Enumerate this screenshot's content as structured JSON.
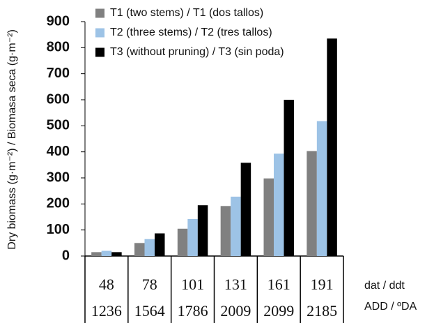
{
  "chart_data": {
    "type": "bar",
    "y_label": "Dry biomass (g·m⁻²) / Biomasa seca (g·m⁻²)",
    "categories": [
      "48",
      "78",
      "101",
      "131",
      "161",
      "191"
    ],
    "categories2": [
      "1236",
      "1564",
      "1786",
      "2009",
      "2099",
      "2185"
    ],
    "row_label": "dat / ddt",
    "row_label2": "ADD / ºDA",
    "series": [
      {
        "name": "T1 (two stems) / T1 (dos tallos)",
        "color": "#808080",
        "values": [
          15,
          50,
          105,
          192,
          298,
          403
        ]
      },
      {
        "name": "T2 (three stems) / T2 (tres tallos)",
        "color": "#9dc3e6",
        "values": [
          20,
          65,
          142,
          228,
          393,
          518
        ]
      },
      {
        "name": "T3 (without pruning) / T3 (sin poda)",
        "color": "#000000",
        "values": [
          15,
          87,
          195,
          358,
          600,
          835
        ]
      }
    ],
    "ylim": [
      0,
      900
    ],
    "yticks": [
      0,
      100,
      200,
      300,
      400,
      500,
      600,
      700,
      800,
      900
    ],
    "grid": false,
    "legend": "top-left"
  }
}
